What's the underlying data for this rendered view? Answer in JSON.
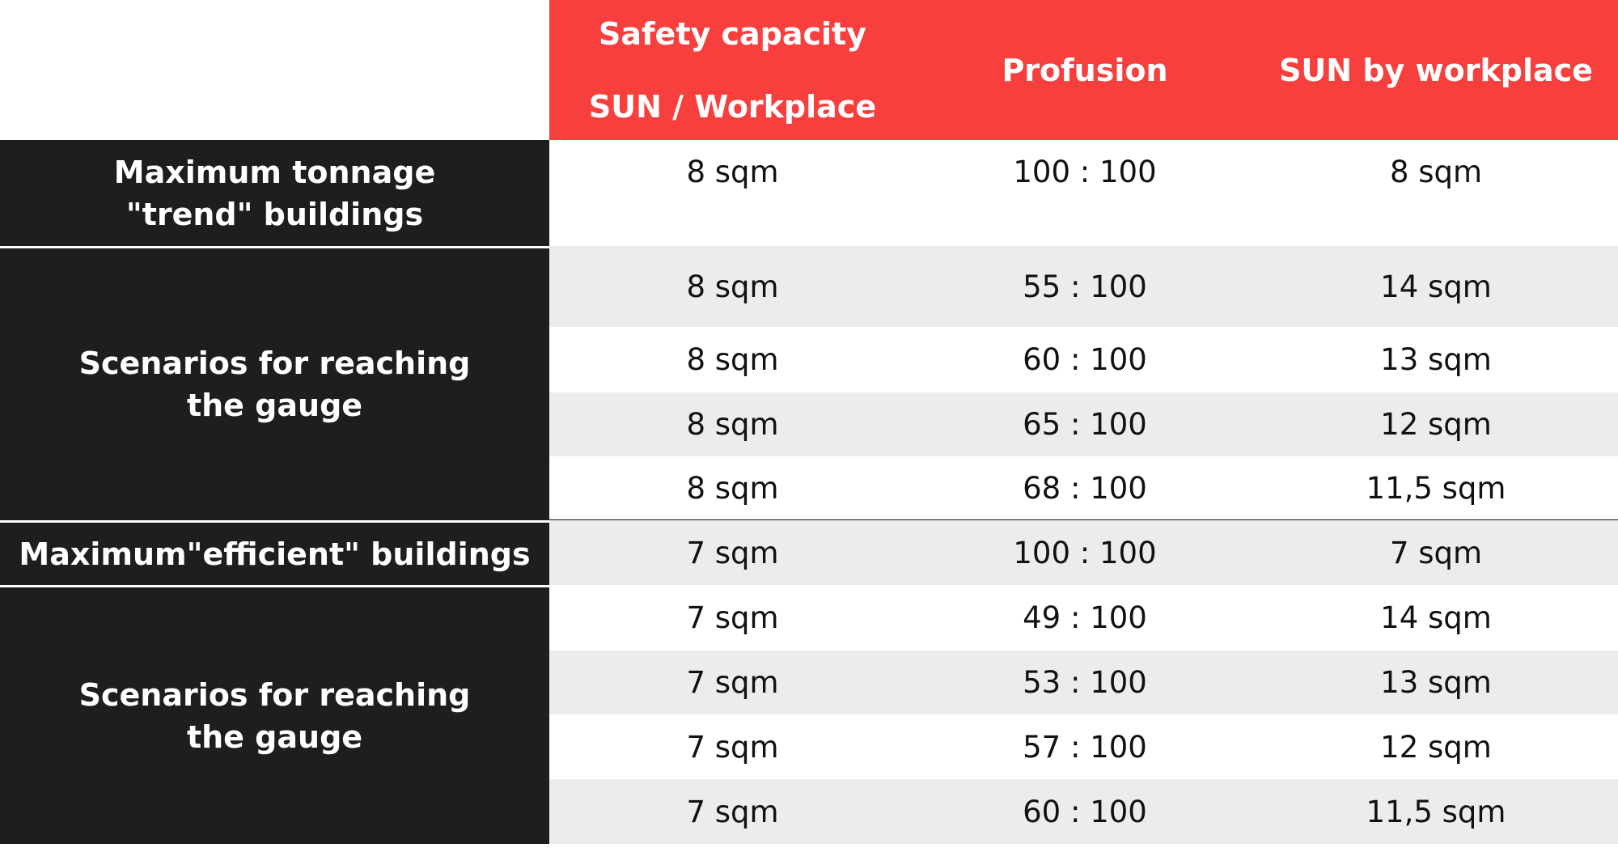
{
  "table": {
    "columns": [
      [
        "Safety capacity",
        "SUN / Workplace"
      ],
      [
        "Profusion"
      ],
      [
        "SUN by workplace"
      ]
    ],
    "groups": [
      {
        "label": [
          "Maximum tonnage",
          "\"trend\" buildings"
        ],
        "rows": [
          [
            "8 sqm",
            "100 : 100",
            "8 sqm"
          ]
        ]
      },
      {
        "label": [
          "Scenarios for reaching",
          "the gauge"
        ],
        "rows": [
          [
            "8 sqm",
            "55 : 100",
            "14 sqm"
          ],
          [
            "8 sqm",
            "60 : 100",
            "13 sqm"
          ],
          [
            "8 sqm",
            "65 : 100",
            "12 sqm"
          ],
          [
            "8 sqm",
            "68 : 100",
            "11,5 sqm"
          ]
        ]
      },
      {
        "label": [
          "Maximum\"efficient\" buildings"
        ],
        "rows": [
          [
            "7 sqm",
            "100 : 100",
            "7 sqm"
          ]
        ]
      },
      {
        "label": [
          "Scenarios for reaching",
          "the gauge"
        ],
        "rows": [
          [
            "7 sqm",
            "49 : 100",
            "14 sqm"
          ],
          [
            "7 sqm",
            "53 : 100",
            "13 sqm"
          ],
          [
            "7 sqm",
            "57 : 100",
            "12 sqm"
          ],
          [
            "7 sqm",
            "60 : 100",
            "11,5 sqm"
          ]
        ]
      }
    ]
  }
}
